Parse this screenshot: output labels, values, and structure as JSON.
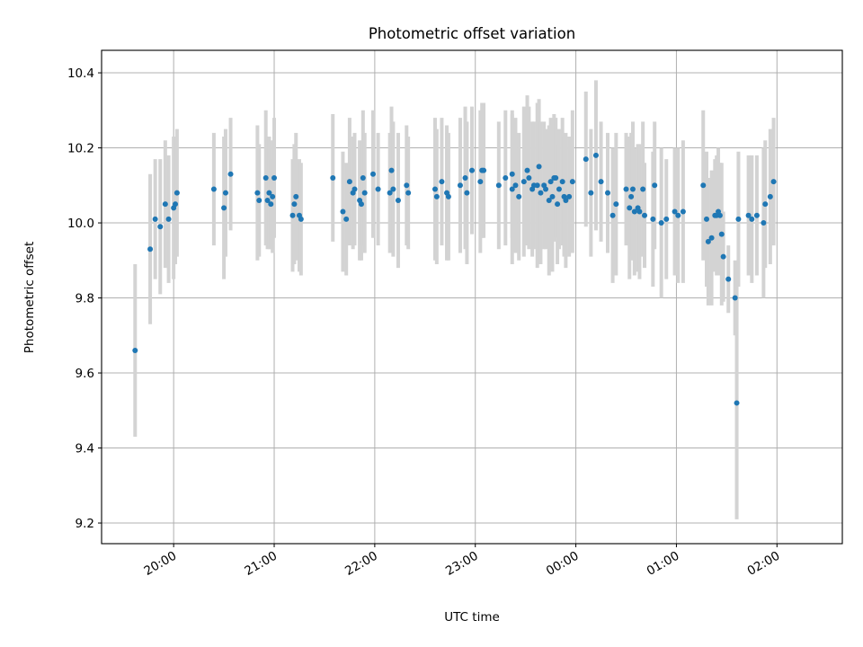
{
  "chart_data": {
    "type": "scatter",
    "title": "Photometric offset variation",
    "xlabel": "UTC time",
    "ylabel": "Photometric offset",
    "ylim": [
      9.145,
      10.46
    ],
    "xlim": [
      "19:17",
      "02:39"
    ],
    "x_unit": "HH:MM UTC (times after midnight belong to the next day)",
    "yticks": [
      9.2,
      9.4,
      9.6,
      9.8,
      10.0,
      10.2,
      10.4
    ],
    "ytick_labels": [
      "9.2",
      "9.4",
      "9.6",
      "9.8",
      "10.0",
      "10.2",
      "10.4"
    ],
    "xticks": [
      "20:00",
      "21:00",
      "22:00",
      "23:00",
      "00:00",
      "01:00",
      "02:00"
    ],
    "grid": true,
    "colors": {
      "point": "#1f77b4",
      "errorbar": "#d3d3d3",
      "grid": "#b0b0b0"
    },
    "series": [
      {
        "x": [
          "19:37",
          "19:46",
          "19:49",
          "19:52",
          "19:55",
          "19:57",
          "20:00",
          "20:01",
          "20:02",
          "20:24",
          "20:30",
          "20:31",
          "20:34",
          "20:50",
          "20:51",
          "20:55",
          "20:56",
          "20:57",
          "20:58",
          "20:59",
          "21:00",
          "21:11",
          "21:12",
          "21:13",
          "21:15",
          "21:16",
          "21:35",
          "21:41",
          "21:43",
          "21:45",
          "21:47",
          "21:48",
          "21:51",
          "21:52",
          "21:53",
          "21:54",
          "21:59",
          "22:02",
          "22:09",
          "22:10",
          "22:11",
          "22:14",
          "22:19",
          "22:20",
          "22:36",
          "22:37",
          "22:40",
          "22:43",
          "22:44",
          "22:51",
          "22:54",
          "22:55",
          "22:58",
          "23:03",
          "23:04",
          "23:05",
          "23:14",
          "23:18",
          "23:22",
          "23:22",
          "23:24",
          "23:26",
          "23:29",
          "23:31",
          "23:32",
          "23:34",
          "23:35",
          "23:37",
          "23:38",
          "23:39",
          "23:41",
          "23:42",
          "23:44",
          "23:45",
          "23:46",
          "23:47",
          "23:48",
          "23:49",
          "23:50",
          "23:52",
          "23:53",
          "23:54",
          "23:56",
          "23:58",
          "00:06",
          "00:09",
          "00:12",
          "00:15",
          "00:19",
          "00:22",
          "00:24",
          "00:30",
          "00:32",
          "00:33",
          "00:34",
          "00:35",
          "00:37",
          "00:38",
          "00:40",
          "00:41",
          "00:46",
          "00:47",
          "00:51",
          "00:54",
          "00:59",
          "01:01",
          "01:04",
          "01:16",
          "01:18",
          "01:19",
          "01:21",
          "01:23",
          "01:24",
          "01:25",
          "01:26",
          "01:27",
          "01:28",
          "01:31",
          "01:35",
          "01:36",
          "01:37",
          "01:43",
          "01:45",
          "01:48",
          "01:52",
          "01:53",
          "01:56",
          "01:58"
        ],
        "y": [
          9.66,
          9.93,
          10.01,
          9.99,
          10.05,
          10.01,
          10.04,
          10.05,
          10.08,
          10.09,
          10.04,
          10.08,
          10.13,
          10.08,
          10.06,
          10.12,
          10.06,
          10.08,
          10.05,
          10.07,
          10.12,
          10.02,
          10.05,
          10.07,
          10.02,
          10.01,
          10.12,
          10.03,
          10.01,
          10.11,
          10.08,
          10.09,
          10.06,
          10.05,
          10.12,
          10.08,
          10.13,
          10.09,
          10.08,
          10.14,
          10.09,
          10.06,
          10.1,
          10.08,
          10.09,
          10.07,
          10.11,
          10.08,
          10.07,
          10.1,
          10.12,
          10.08,
          10.14,
          10.11,
          10.14,
          10.14,
          10.1,
          10.12,
          10.09,
          10.13,
          10.1,
          10.07,
          10.11,
          10.14,
          10.12,
          10.09,
          10.1,
          10.1,
          10.15,
          10.08,
          10.1,
          10.09,
          10.06,
          10.11,
          10.07,
          10.12,
          10.12,
          10.05,
          10.09,
          10.11,
          10.07,
          10.06,
          10.07,
          10.11,
          10.17,
          10.08,
          10.18,
          10.11,
          10.08,
          10.02,
          10.05,
          10.09,
          10.04,
          10.07,
          10.09,
          10.03,
          10.04,
          10.03,
          10.09,
          10.02,
          10.01,
          10.1,
          10.0,
          10.01,
          10.03,
          10.02,
          10.03,
          10.1,
          10.01,
          9.95,
          9.96,
          10.02,
          10.02,
          10.03,
          10.02,
          9.97,
          9.91,
          9.85,
          9.8,
          9.52,
          10.01,
          10.02,
          10.01,
          10.02,
          10.0,
          10.05,
          10.07,
          10.11
        ],
        "yerr": [
          0.23,
          0.2,
          0.16,
          0.18,
          0.17,
          0.17,
          0.19,
          0.16,
          0.17,
          0.15,
          0.19,
          0.17,
          0.15,
          0.18,
          0.15,
          0.18,
          0.13,
          0.15,
          0.12,
          0.15,
          0.16,
          0.15,
          0.16,
          0.17,
          0.15,
          0.15,
          0.17,
          0.16,
          0.15,
          0.17,
          0.15,
          0.15,
          0.16,
          0.15,
          0.18,
          0.16,
          0.17,
          0.15,
          0.16,
          0.17,
          0.18,
          0.18,
          0.16,
          0.15,
          0.19,
          0.18,
          0.17,
          0.18,
          0.17,
          0.18,
          0.19,
          0.19,
          0.17,
          0.19,
          0.18,
          0.18,
          0.17,
          0.18,
          0.2,
          0.17,
          0.18,
          0.17,
          0.2,
          0.2,
          0.19,
          0.18,
          0.17,
          0.22,
          0.18,
          0.19,
          0.17,
          0.16,
          0.2,
          0.17,
          0.2,
          0.17,
          0.16,
          0.16,
          0.16,
          0.17,
          0.16,
          0.18,
          0.16,
          0.19,
          0.18,
          0.17,
          0.2,
          0.16,
          0.16,
          0.18,
          0.19,
          0.15,
          0.19,
          0.17,
          0.18,
          0.17,
          0.17,
          0.18,
          0.18,
          0.14,
          0.18,
          0.17,
          0.2,
          0.16,
          0.17,
          0.18,
          0.19,
          0.2,
          0.18,
          0.17,
          0.18,
          0.15,
          0.16,
          0.17,
          0.14,
          0.19,
          0.12,
          0.09,
          0.1,
          0.31,
          0.18,
          0.16,
          0.17,
          0.16,
          0.2,
          0.17,
          0.18,
          0.17
        ]
      }
    ]
  }
}
